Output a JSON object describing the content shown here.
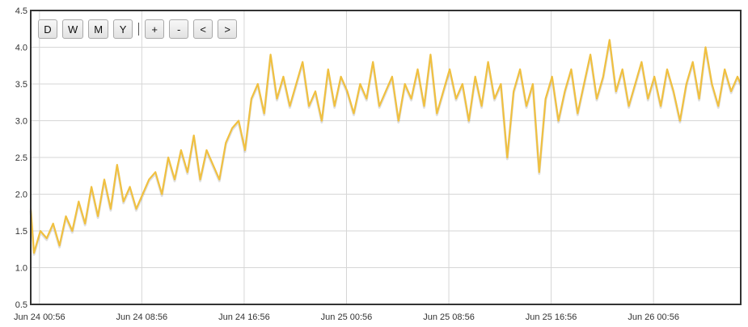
{
  "toolbar": {
    "range_buttons": [
      "D",
      "W",
      "M",
      "Y"
    ],
    "nav_buttons": [
      "+",
      "-",
      "<",
      ">"
    ]
  },
  "colors": {
    "series": "#f0c040",
    "grid": "#d6d6d6",
    "frame": "#333333"
  },
  "chart_data": {
    "type": "line",
    "title": "",
    "xlabel": "",
    "ylabel": "",
    "ylim": [
      0.5,
      4.5
    ],
    "yticks": [
      "0.5",
      "1.0",
      "1.5",
      "2.0",
      "2.5",
      "3.0",
      "3.5",
      "4.0",
      "4.5"
    ],
    "xticks": [
      "Jun 24 00:56",
      "Jun 24 08:56",
      "Jun 24 16:56",
      "Jun 25 00:56",
      "Jun 25 08:56",
      "Jun 25 16:56",
      "Jun 26 00:56"
    ],
    "x_range": [
      "Jun 24 00:15",
      "Jun 26 07:45"
    ],
    "grid": true,
    "legend": "none",
    "series": [
      {
        "x": [
          "Jun 24 00:15",
          "Jun 24 00:30",
          "Jun 24 01:00",
          "Jun 24 01:30",
          "Jun 24 02:00",
          "Jun 24 02:30",
          "Jun 24 03:00",
          "Jun 24 03:30",
          "Jun 24 04:00",
          "Jun 24 04:30",
          "Jun 24 05:00",
          "Jun 24 05:30",
          "Jun 24 06:00",
          "Jun 24 06:30",
          "Jun 24 07:00",
          "Jun 24 07:30",
          "Jun 24 08:00",
          "Jun 24 08:30",
          "Jun 24 09:00",
          "Jun 24 09:30",
          "Jun 24 10:00",
          "Jun 24 10:30",
          "Jun 24 11:00",
          "Jun 24 11:30",
          "Jun 24 12:00",
          "Jun 24 12:30",
          "Jun 24 13:00",
          "Jun 24 13:30",
          "Jun 24 14:00",
          "Jun 24 14:30",
          "Jun 24 15:00",
          "Jun 24 15:30",
          "Jun 24 16:00",
          "Jun 24 16:30",
          "Jun 24 17:00",
          "Jun 24 17:30",
          "Jun 24 18:00",
          "Jun 24 18:30",
          "Jun 24 19:00",
          "Jun 24 19:30",
          "Jun 24 20:00",
          "Jun 24 20:30",
          "Jun 24 21:00",
          "Jun 24 21:30",
          "Jun 24 22:00",
          "Jun 24 22:30",
          "Jun 24 23:00",
          "Jun 24 23:30",
          "Jun 25 00:00",
          "Jun 25 00:30",
          "Jun 25 01:00",
          "Jun 25 01:30",
          "Jun 25 02:00",
          "Jun 25 02:30",
          "Jun 25 03:00",
          "Jun 25 03:30",
          "Jun 25 04:00",
          "Jun 25 04:30",
          "Jun 25 05:00",
          "Jun 25 05:30",
          "Jun 25 06:00",
          "Jun 25 06:30",
          "Jun 25 07:00",
          "Jun 25 07:30",
          "Jun 25 08:00",
          "Jun 25 08:30",
          "Jun 25 09:00",
          "Jun 25 09:30",
          "Jun 25 10:00",
          "Jun 25 10:30",
          "Jun 25 11:00",
          "Jun 25 11:30",
          "Jun 25 12:00",
          "Jun 25 12:30",
          "Jun 25 13:00",
          "Jun 25 13:30",
          "Jun 25 14:00",
          "Jun 25 14:30",
          "Jun 25 15:00",
          "Jun 25 15:30",
          "Jun 25 16:00",
          "Jun 25 16:30",
          "Jun 25 17:00",
          "Jun 25 17:30",
          "Jun 25 18:00",
          "Jun 25 18:30",
          "Jun 25 19:00",
          "Jun 25 19:30",
          "Jun 25 20:00",
          "Jun 25 20:30",
          "Jun 25 21:00",
          "Jun 25 21:30",
          "Jun 25 22:00",
          "Jun 25 22:30",
          "Jun 25 23:00",
          "Jun 25 23:30",
          "Jun 26 00:00",
          "Jun 26 00:30",
          "Jun 26 01:00",
          "Jun 26 01:30",
          "Jun 26 02:00",
          "Jun 26 02:30",
          "Jun 26 03:00",
          "Jun 26 03:30",
          "Jun 26 04:00",
          "Jun 26 04:30",
          "Jun 26 05:00",
          "Jun 26 05:30",
          "Jun 26 06:00",
          "Jun 26 06:30",
          "Jun 26 07:00",
          "Jun 26 07:30",
          "Jun 26 07:45"
        ],
        "y": [
          1.8,
          1.2,
          1.5,
          1.4,
          1.6,
          1.3,
          1.7,
          1.5,
          1.9,
          1.6,
          2.1,
          1.7,
          2.2,
          1.8,
          2.4,
          1.9,
          2.1,
          1.8,
          2.0,
          2.2,
          2.3,
          2.0,
          2.5,
          2.2,
          2.6,
          2.3,
          2.8,
          2.2,
          2.6,
          2.4,
          2.2,
          2.7,
          2.9,
          3.0,
          2.6,
          3.3,
          3.5,
          3.1,
          3.9,
          3.3,
          3.6,
          3.2,
          3.5,
          3.8,
          3.2,
          3.4,
          3.0,
          3.7,
          3.2,
          3.6,
          3.4,
          3.1,
          3.5,
          3.3,
          3.8,
          3.2,
          3.4,
          3.6,
          3.0,
          3.5,
          3.3,
          3.7,
          3.2,
          3.9,
          3.1,
          3.4,
          3.7,
          3.3,
          3.5,
          3.0,
          3.6,
          3.2,
          3.8,
          3.3,
          3.5,
          2.5,
          3.4,
          3.7,
          3.2,
          3.5,
          2.3,
          3.3,
          3.6,
          3.0,
          3.4,
          3.7,
          3.1,
          3.5,
          3.9,
          3.3,
          3.6,
          4.1,
          3.4,
          3.7,
          3.2,
          3.5,
          3.8,
          3.3,
          3.6,
          3.2,
          3.7,
          3.4,
          3.0,
          3.5,
          3.8,
          3.3,
          4.0,
          3.5,
          3.2,
          3.7,
          3.4,
          3.6,
          3.5
        ]
      }
    ]
  }
}
